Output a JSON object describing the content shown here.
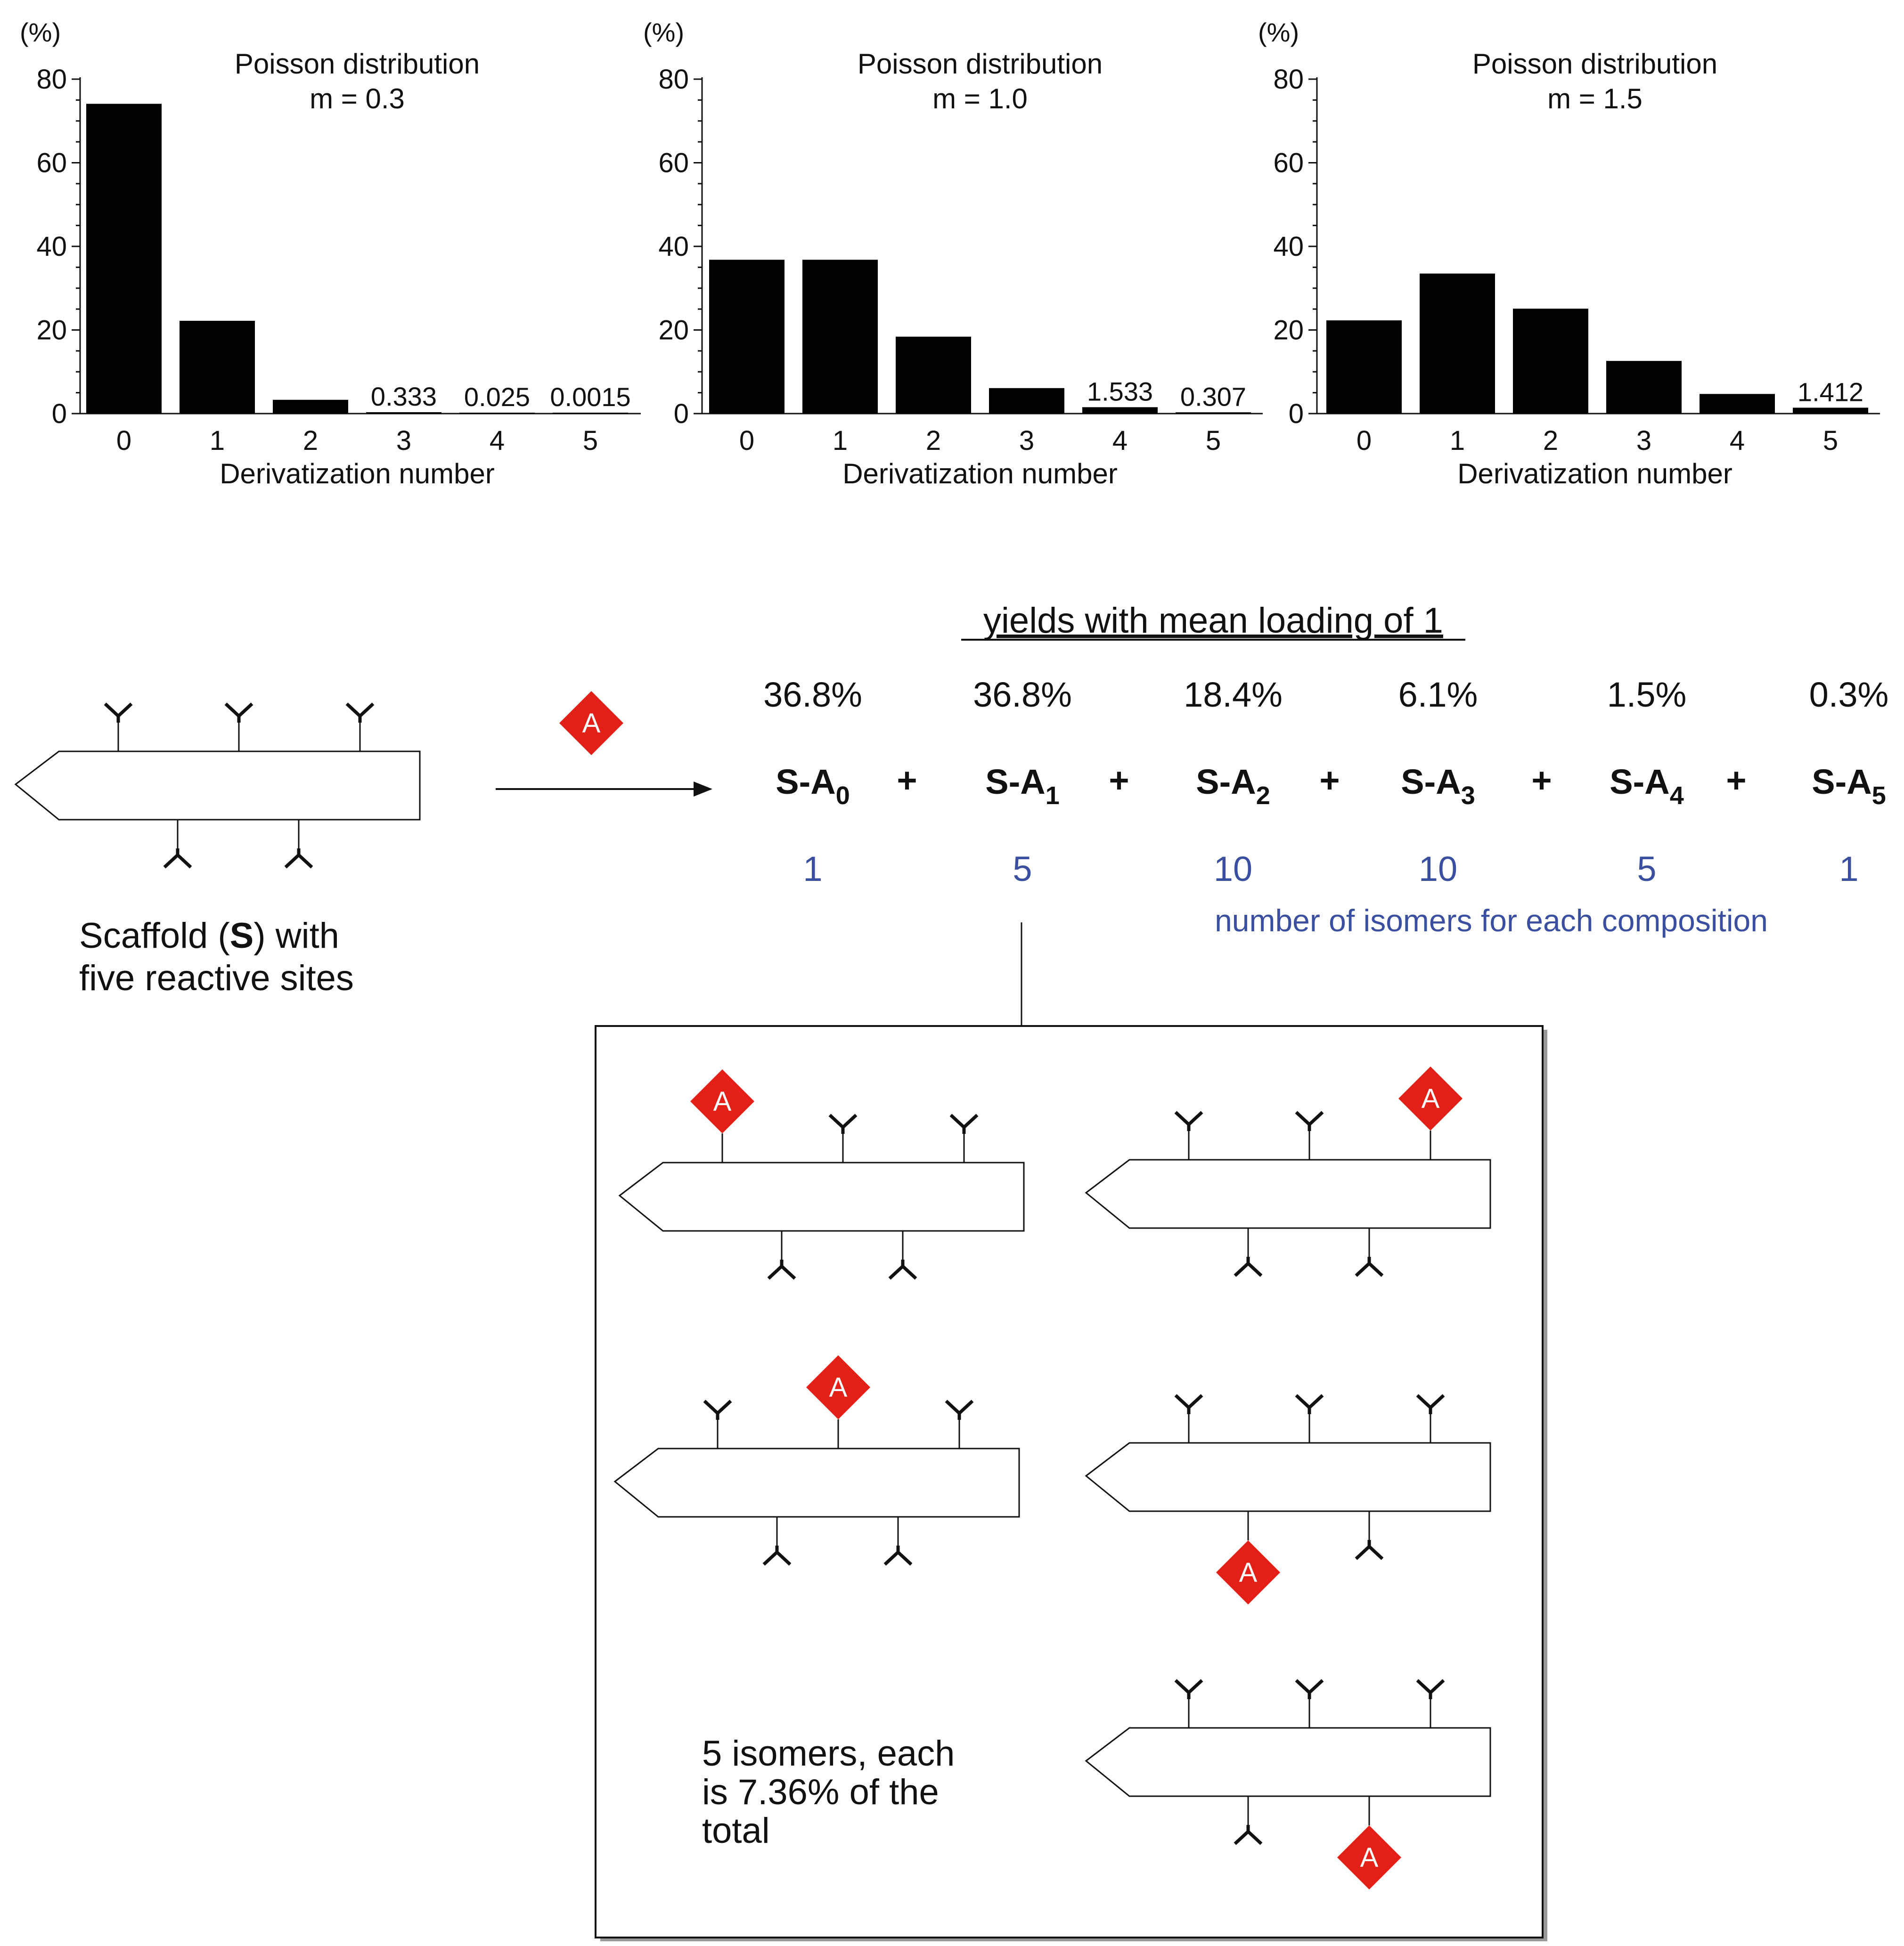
{
  "chart_data": [
    {
      "type": "bar",
      "unit_label": "(%)",
      "title": "Poisson distribution",
      "subtitle": "m = 0.3",
      "xlabel": "Derivatization number",
      "categories": [
        "0",
        "1",
        "2",
        "3",
        "4",
        "5"
      ],
      "values": [
        74.1,
        22.2,
        3.3,
        0.333,
        0.025,
        0.0015
      ],
      "value_labels": [
        "",
        "",
        "",
        "0.333",
        "0.025",
        "0.0015"
      ],
      "yticks": [
        "0",
        "20",
        "40",
        "60",
        "80"
      ],
      "ylim": [
        0,
        80
      ]
    },
    {
      "type": "bar",
      "unit_label": "(%)",
      "title": "Poisson distribution",
      "subtitle": "m = 1.0",
      "xlabel": "Derivatization number",
      "categories": [
        "0",
        "1",
        "2",
        "3",
        "4",
        "5"
      ],
      "values": [
        36.8,
        36.8,
        18.4,
        6.1,
        1.533,
        0.307
      ],
      "value_labels": [
        "",
        "",
        "",
        "",
        "1.533",
        "0.307"
      ],
      "yticks": [
        "0",
        "20",
        "40",
        "60",
        "80"
      ],
      "ylim": [
        0,
        80
      ]
    },
    {
      "type": "bar",
      "unit_label": "(%)",
      "title": "Poisson distribution",
      "subtitle": "m = 1.5",
      "xlabel": "Derivatization number",
      "categories": [
        "0",
        "1",
        "2",
        "3",
        "4",
        "5"
      ],
      "values": [
        22.3,
        33.5,
        25.1,
        12.6,
        4.7,
        1.412
      ],
      "value_labels": [
        "",
        "",
        "",
        "",
        "",
        "1.412"
      ],
      "yticks": [
        "0",
        "20",
        "40",
        "60",
        "80"
      ],
      "ylim": [
        0,
        80
      ]
    }
  ],
  "scheme": {
    "reagent_label": "A",
    "scaffold_caption_1": "Scaffold (",
    "scaffold_caption_bold": "S",
    "scaffold_caption_2": ") with",
    "scaffold_caption_line2": "five reactive sites",
    "yields_heading": "yields with mean loading of 1",
    "yields": [
      "36.8%",
      "36.8%",
      "18.4%",
      "6.1%",
      "1.5%",
      "0.3%"
    ],
    "product_prefix": "S-A",
    "product_subscripts": [
      "0",
      "1",
      "2",
      "3",
      "4",
      "5"
    ],
    "plus": "+",
    "isomer_counts": [
      "1",
      "5",
      "10",
      "10",
      "5",
      "1"
    ],
    "isomer_caption": "number of isomers for each composition",
    "box_text": [
      "5 isomers, each",
      "is 7.36% of the",
      "total"
    ],
    "colors": {
      "isomer_blue": "#3b4fa0",
      "reagent_red": "#e32017"
    }
  }
}
